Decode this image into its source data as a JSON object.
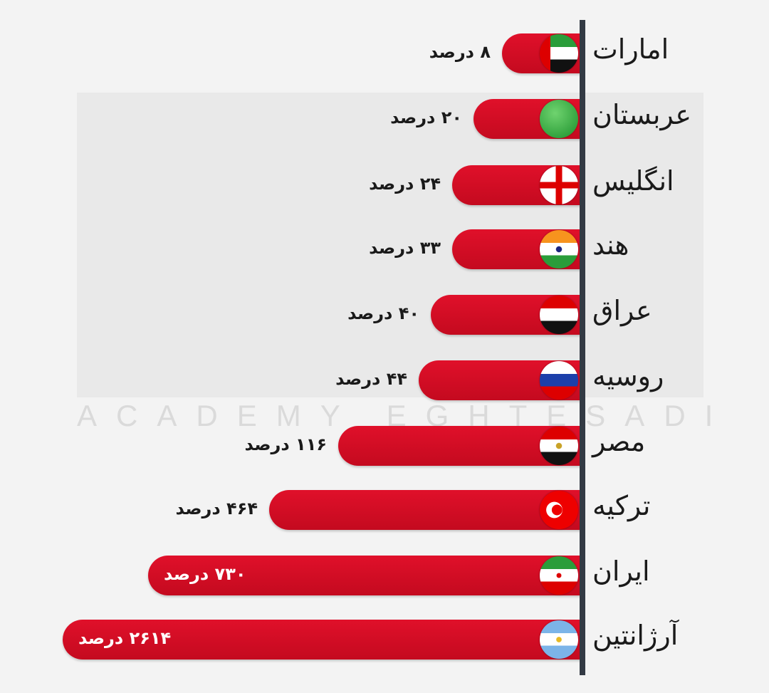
{
  "watermark": "ACADEMY EGHTESADI",
  "chart_data": {
    "type": "bar",
    "orientation": "horizontal",
    "unit": "درصد",
    "bar_color": "#d10d24",
    "axis_color": "#333a44",
    "categories": [
      "امارات",
      "عربستان",
      "انگلیس",
      "هند",
      "عراق",
      "روسیه",
      "مصر",
      "ترکیه",
      "ایران",
      "آرژانتین"
    ],
    "values": [
      8,
      20,
      24,
      33,
      40,
      44,
      116,
      464,
      730,
      2614
    ],
    "value_labels": [
      "۸ درصد",
      "۲۰ درصد",
      "۲۴ درصد",
      "۳۳ درصد",
      "۴۰ درصد",
      "۴۴ درصد",
      "۱۱۶ درصد",
      "۴۶۴ درصد",
      "۷۳۰ درصد",
      "۲۶۱۴ درصد"
    ],
    "flag_icons": [
      "uae-flag-icon",
      "saudi-flag-icon",
      "england-flag-icon",
      "india-flag-icon",
      "iraq-flag-icon",
      "russia-flag-icon",
      "egypt-flag-icon",
      "turkey-flag-icon",
      "iran-flag-icon",
      "argentina-flag-icon"
    ]
  }
}
